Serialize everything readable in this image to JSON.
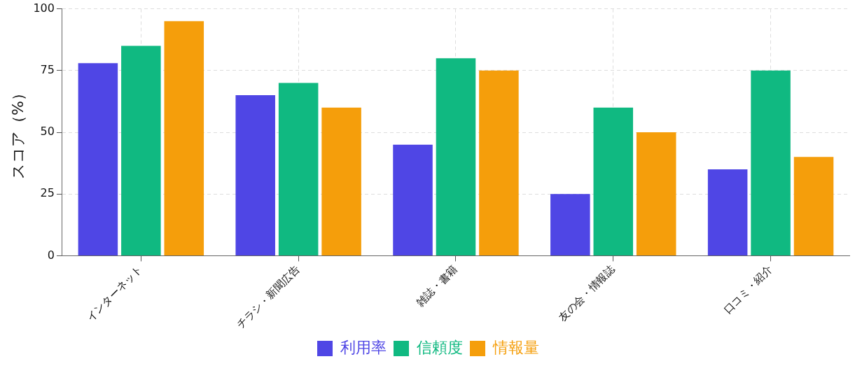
{
  "chart_data": {
    "type": "bar",
    "ylabel": "スコア（%）",
    "categories": [
      "インターネット",
      "チラシ・新聞広告",
      "雑誌・書籍",
      "友の会・情報誌",
      "口コミ・紹介"
    ],
    "series": [
      {
        "name": "利用率",
        "color": "#4f46e5",
        "values": [
          78,
          65,
          45,
          25,
          35
        ]
      },
      {
        "name": "信頼度",
        "color": "#10b981",
        "values": [
          85,
          70,
          80,
          60,
          75
        ]
      },
      {
        "name": "情報量",
        "color": "#f59e0b",
        "values": [
          95,
          60,
          75,
          50,
          40
        ]
      }
    ],
    "ylim": [
      0,
      100
    ],
    "yticks": [
      0,
      25,
      50,
      75,
      100
    ],
    "grid": true,
    "legend": "bottom"
  }
}
